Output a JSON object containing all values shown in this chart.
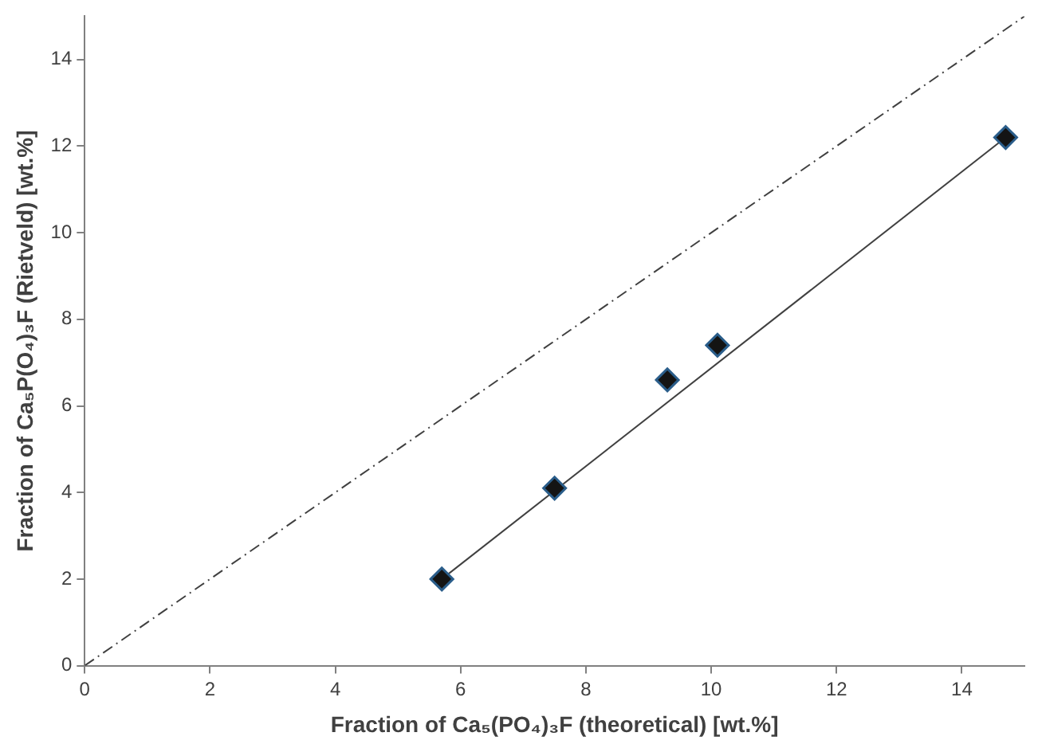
{
  "chart_data": {
    "type": "scatter",
    "xlabel": "Fraction of Ca₅(PO₄)₃F (theoretical) [wt.%]",
    "ylabel": "Fraction of Ca₅P(O₄)₃F (Rietveld) [wt.%]",
    "xlim": [
      0,
      15
    ],
    "xticks": [
      0,
      2,
      4,
      6,
      8,
      10,
      12,
      14
    ],
    "ylim": [
      0,
      15
    ],
    "yticks": [
      0,
      2,
      4,
      6,
      8,
      10,
      12,
      14
    ],
    "grid": false,
    "legend": false,
    "series": [
      {
        "marker": "diamond",
        "color": "#141414",
        "x": [
          5.7,
          7.5,
          9.3,
          10.1,
          14.7
        ],
        "values": [
          2.0,
          4.1,
          6.6,
          7.4,
          12.2
        ]
      },
      {
        "type": "line",
        "color": "#404040",
        "line_style": "solid",
        "x": [
          5.7,
          14.7
        ],
        "values": [
          2.0,
          12.2
        ]
      },
      {
        "type": "line",
        "color": "#404040",
        "line_style": "dashed",
        "x": [
          0,
          15
        ],
        "values": [
          0,
          15
        ]
      }
    ]
  }
}
